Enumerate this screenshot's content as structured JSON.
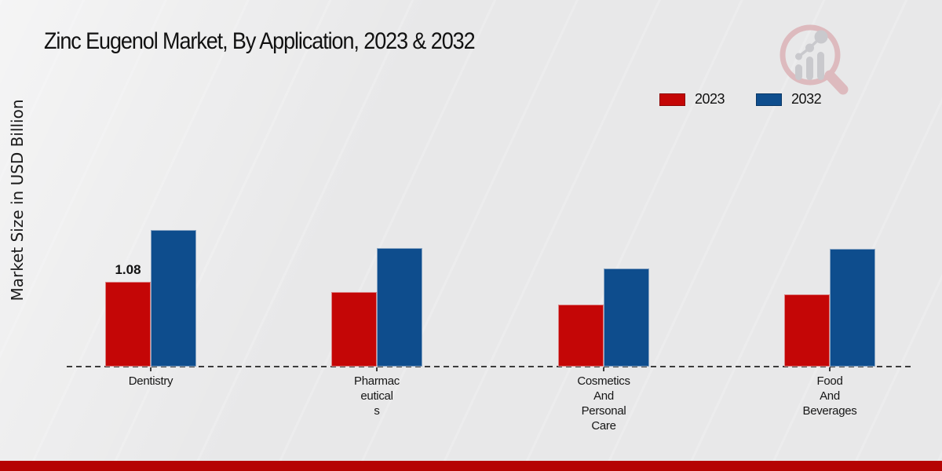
{
  "accents": {
    "bottom_bar_color": "#b50303",
    "background": "#e8e8e9",
    "axis_color": "#3c3c3c"
  },
  "logo": {
    "icon": "magnifier-bar-chart-logo"
  },
  "chart_data": {
    "type": "bar",
    "title": "Zinc Eugenol Market, By Application, 2023 & 2032",
    "xlabel": "",
    "ylabel": "Market Size in USD Billion",
    "categories": [
      "Dentistry",
      "Pharmaceuticals",
      "Cosmetics And Personal Care",
      "Food And Beverages"
    ],
    "category_label_lines": [
      [
        "Dentistry"
      ],
      [
        "Pharmac",
        "eutical",
        "s"
      ],
      [
        "Cosmetics",
        "And",
        "Personal",
        "Care"
      ],
      [
        "Food",
        "And",
        "Beverages"
      ]
    ],
    "series": [
      {
        "name": "2023",
        "color": "#c40606",
        "values": [
          1.08,
          0.95,
          0.79,
          0.92
        ]
      },
      {
        "name": "2032",
        "color": "#0e4d8d",
        "values": [
          1.74,
          1.51,
          1.25,
          1.5
        ]
      }
    ],
    "data_labels": [
      {
        "series": "2023",
        "category": "Dentistry",
        "text": "1.08"
      }
    ],
    "ylim": [
      0,
      2.2
    ],
    "grid": false,
    "baseline_style": "dashed",
    "legend_position": "top-right"
  }
}
